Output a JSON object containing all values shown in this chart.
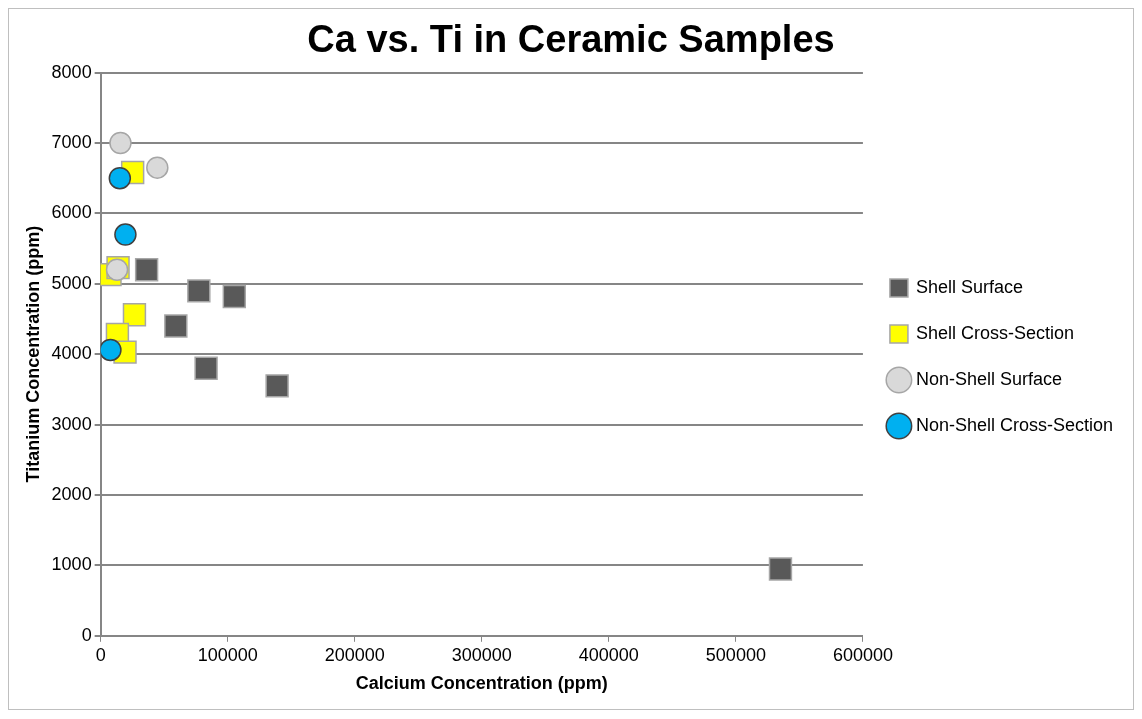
{
  "chart_data": {
    "type": "scatter",
    "title": "Ca vs. Ti in Ceramic Samples",
    "xlabel": "Calcium Concentration (ppm)",
    "ylabel": "Titanium Concentration (ppm)",
    "xlim": [
      0,
      600000
    ],
    "xticks": [
      0,
      100000,
      200000,
      300000,
      400000,
      500000,
      600000
    ],
    "ylim": [
      0,
      8000
    ],
    "yticks": [
      0,
      1000,
      2000,
      3000,
      4000,
      5000,
      6000,
      7000,
      8000
    ],
    "grid": "y",
    "legend": "right",
    "series": [
      {
        "name": "Shell Surface",
        "color": "#595959",
        "marker": "square",
        "x": [
          36200,
          77300,
          105200,
          59200,
          83000,
          138900,
          535100
        ],
        "values": [
          5200,
          4900,
          4820,
          4400,
          3800,
          3550,
          950
        ]
      },
      {
        "name": "Shell Cross-Section",
        "color": "#ffff00",
        "marker": "square",
        "x": [
          25200,
          7400,
          13700,
          26600,
          13200,
          19200
        ],
        "values": [
          6580,
          5130,
          5230,
          4560,
          4280,
          4030
        ]
      },
      {
        "name": "Non-Shell Surface",
        "color": "#d9d9d9",
        "marker": "circle",
        "x": [
          15600,
          44600,
          12900
        ],
        "values": [
          7000,
          6650,
          5200
        ]
      },
      {
        "name": "Non-Shell Cross-Section",
        "color": "#00b0f0",
        "marker": "circle",
        "x": [
          15100,
          19500,
          7700
        ],
        "values": [
          6500,
          5700,
          4060
        ]
      }
    ]
  }
}
